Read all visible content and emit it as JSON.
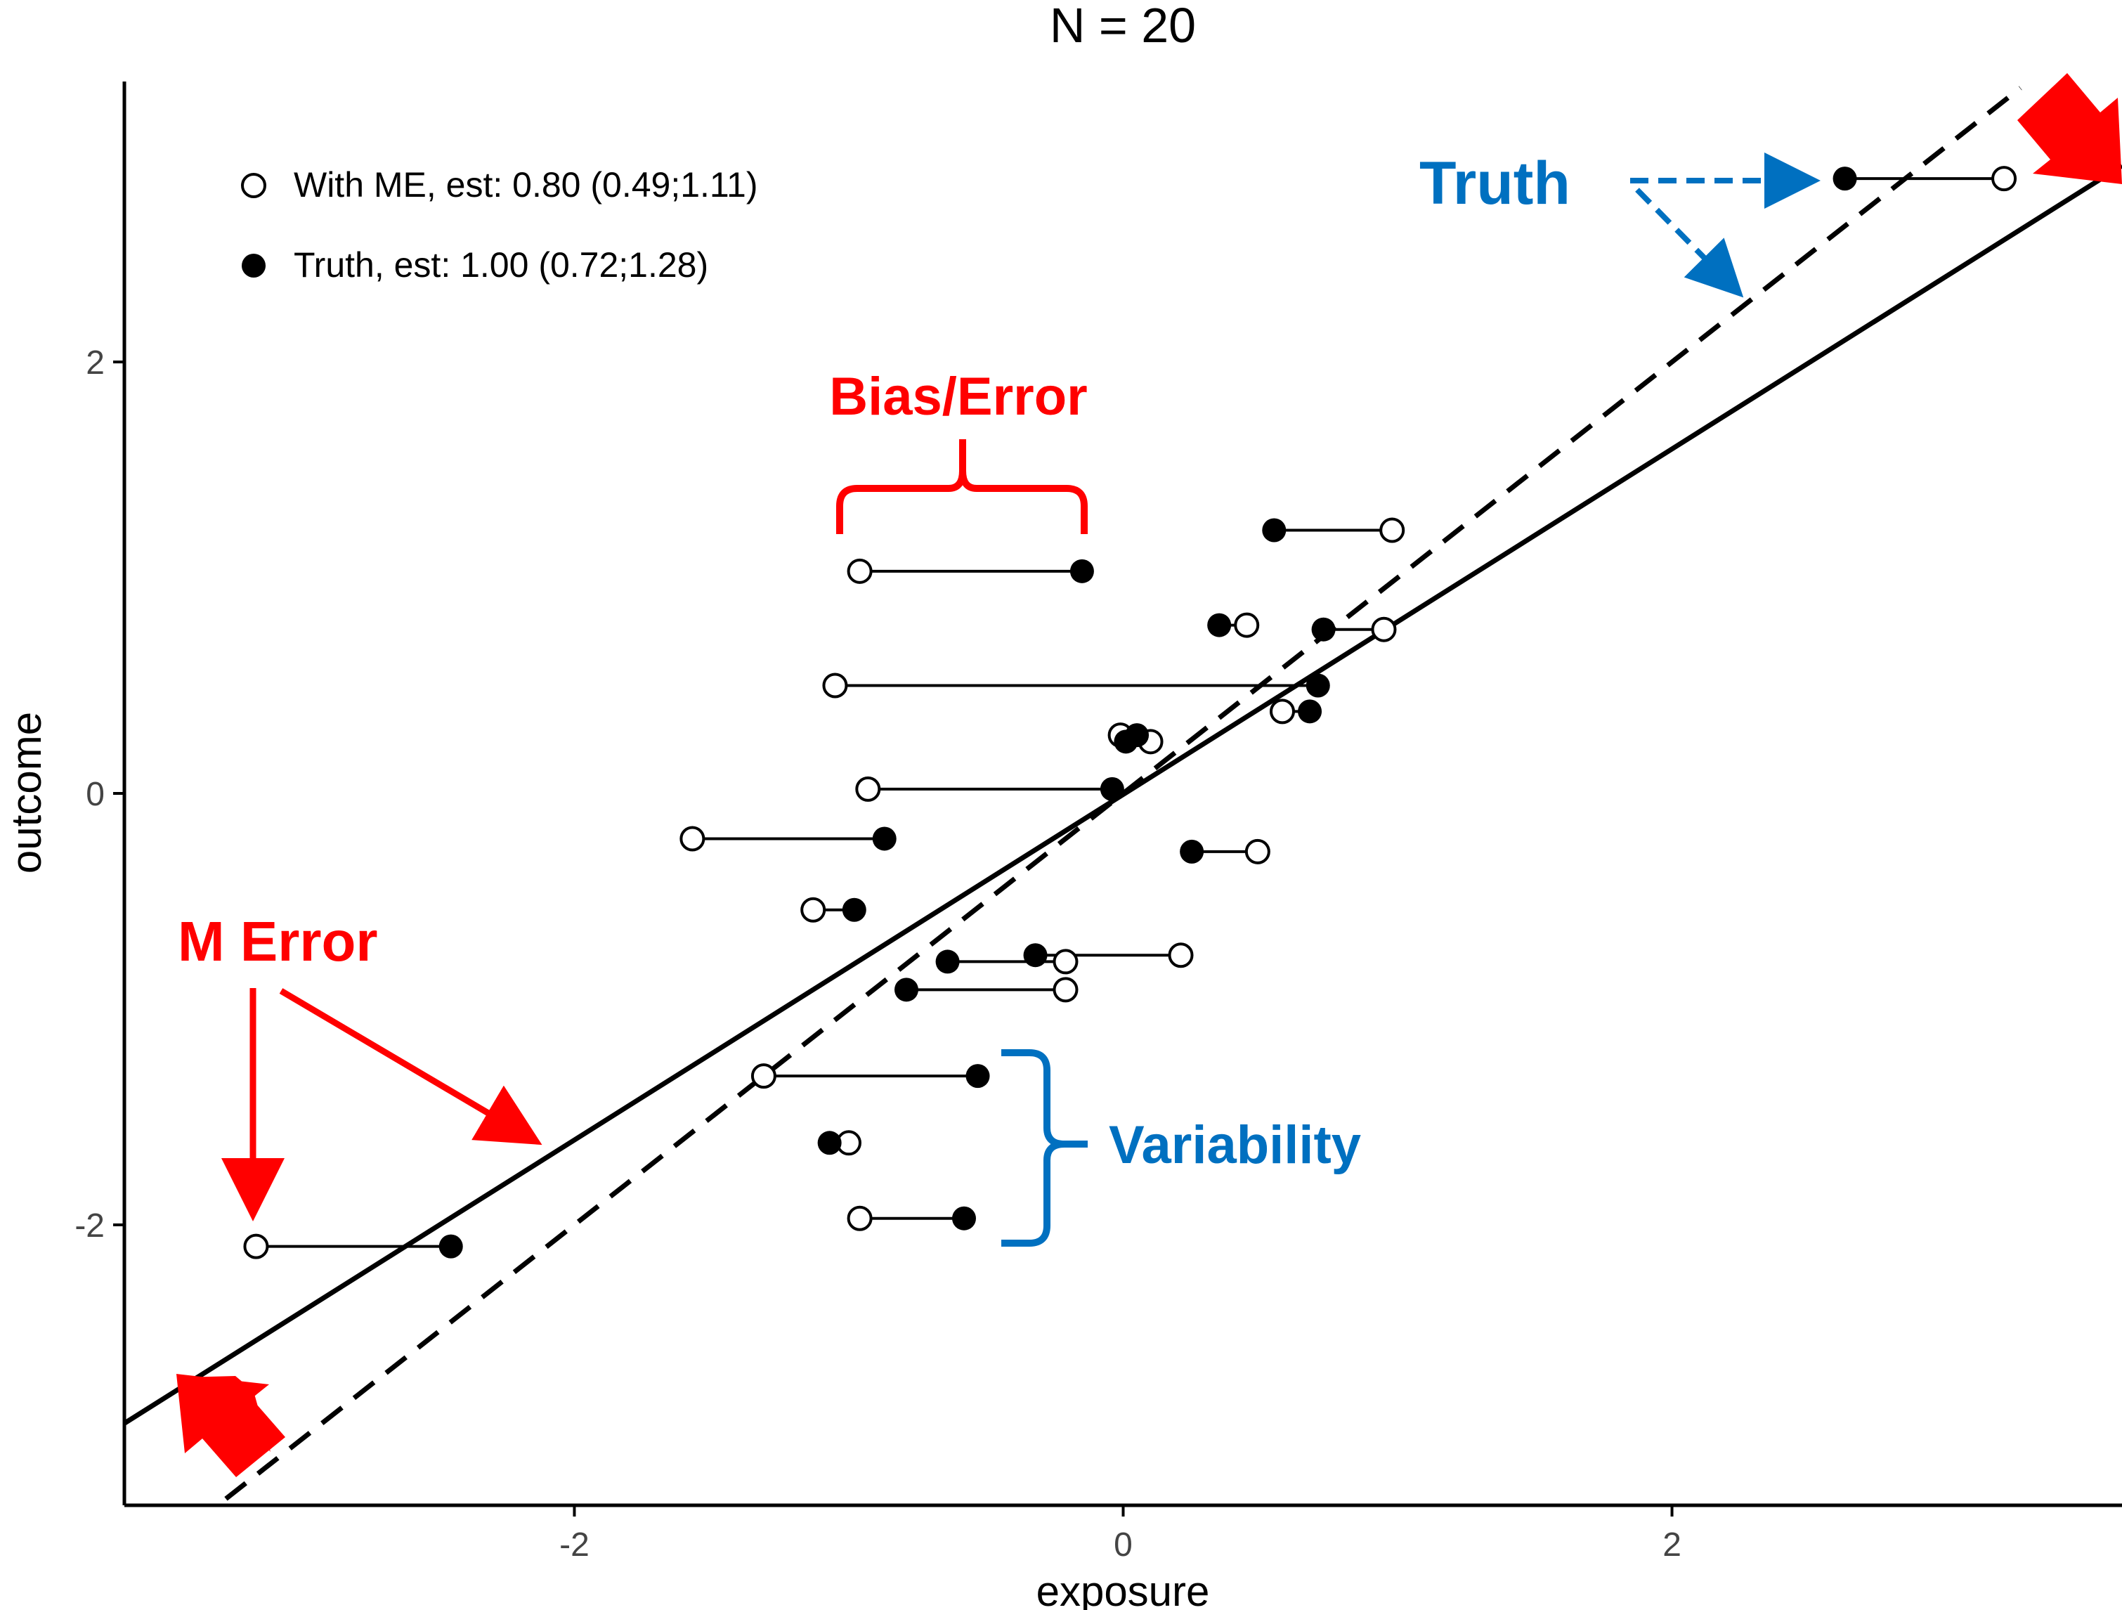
{
  "chart_data": {
    "type": "scatter",
    "title": "N = 20",
    "xlabel": "exposure",
    "ylabel": "outcome",
    "xlim": [
      -3.64,
      3.64
    ],
    "ylim": [
      -3.3,
      3.3
    ],
    "x_ticks": [
      -2,
      0,
      2
    ],
    "y_ticks": [
      -2,
      0,
      2
    ],
    "grid": false,
    "legend_position": "top-left",
    "legend": [
      {
        "label": "With ME, est: 0.80 (0.49;1.11)",
        "marker": "open-circle"
      },
      {
        "label": "Truth, est: 1.00 (0.72;1.28)",
        "marker": "filled-circle"
      }
    ],
    "pairs": [
      {
        "with_me": -3.16,
        "truth": -2.45,
        "y": -2.1
      },
      {
        "with_me": -0.96,
        "truth": -0.15,
        "y": 1.03
      },
      {
        "with_me": 0.98,
        "truth": 0.55,
        "y": 1.22
      },
      {
        "with_me": 0.45,
        "truth": 0.35,
        "y": 0.78
      },
      {
        "with_me": 0.95,
        "truth": 0.73,
        "y": 0.76
      },
      {
        "with_me": -1.05,
        "truth": 0.71,
        "y": 0.5
      },
      {
        "with_me": 0.58,
        "truth": 0.68,
        "y": 0.38
      },
      {
        "with_me": 0.1,
        "truth": 0.01,
        "y": 0.24
      },
      {
        "with_me": -0.01,
        "truth": 0.05,
        "y": 0.27
      },
      {
        "with_me": -0.93,
        "truth": -0.04,
        "y": 0.02
      },
      {
        "with_me": -1.57,
        "truth": -0.87,
        "y": -0.21
      },
      {
        "with_me": 0.49,
        "truth": 0.25,
        "y": -0.27
      },
      {
        "with_me": -1.13,
        "truth": -0.98,
        "y": -0.54
      },
      {
        "with_me": 0.21,
        "truth": -0.32,
        "y": -0.75
      },
      {
        "with_me": -0.21,
        "truth": -0.64,
        "y": -0.78
      },
      {
        "with_me": -0.21,
        "truth": -0.79,
        "y": -0.91
      },
      {
        "with_me": -1.31,
        "truth": -0.53,
        "y": -1.31
      },
      {
        "with_me": -1.0,
        "truth": -1.07,
        "y": -1.62
      },
      {
        "with_me": -0.96,
        "truth": -0.58,
        "y": -1.97
      },
      {
        "with_me": 3.21,
        "truth": 2.63,
        "y": 2.85
      }
    ],
    "lines": [
      {
        "style": "solid",
        "x": [
          -3.64,
          3.64
        ],
        "y": [
          -2.92,
          2.91
        ]
      },
      {
        "style": "dashed",
        "x": [
          -3.27,
          3.27
        ],
        "y": [
          -3.27,
          3.27
        ]
      }
    ],
    "annotations": [
      {
        "text": "Truth",
        "color": "#0070C0"
      },
      {
        "text": "Bias/Error",
        "color": "#FF0000"
      },
      {
        "text": "M Error",
        "color": "#FF0000"
      },
      {
        "text": "Variability",
        "color": "#0070C0"
      }
    ]
  }
}
